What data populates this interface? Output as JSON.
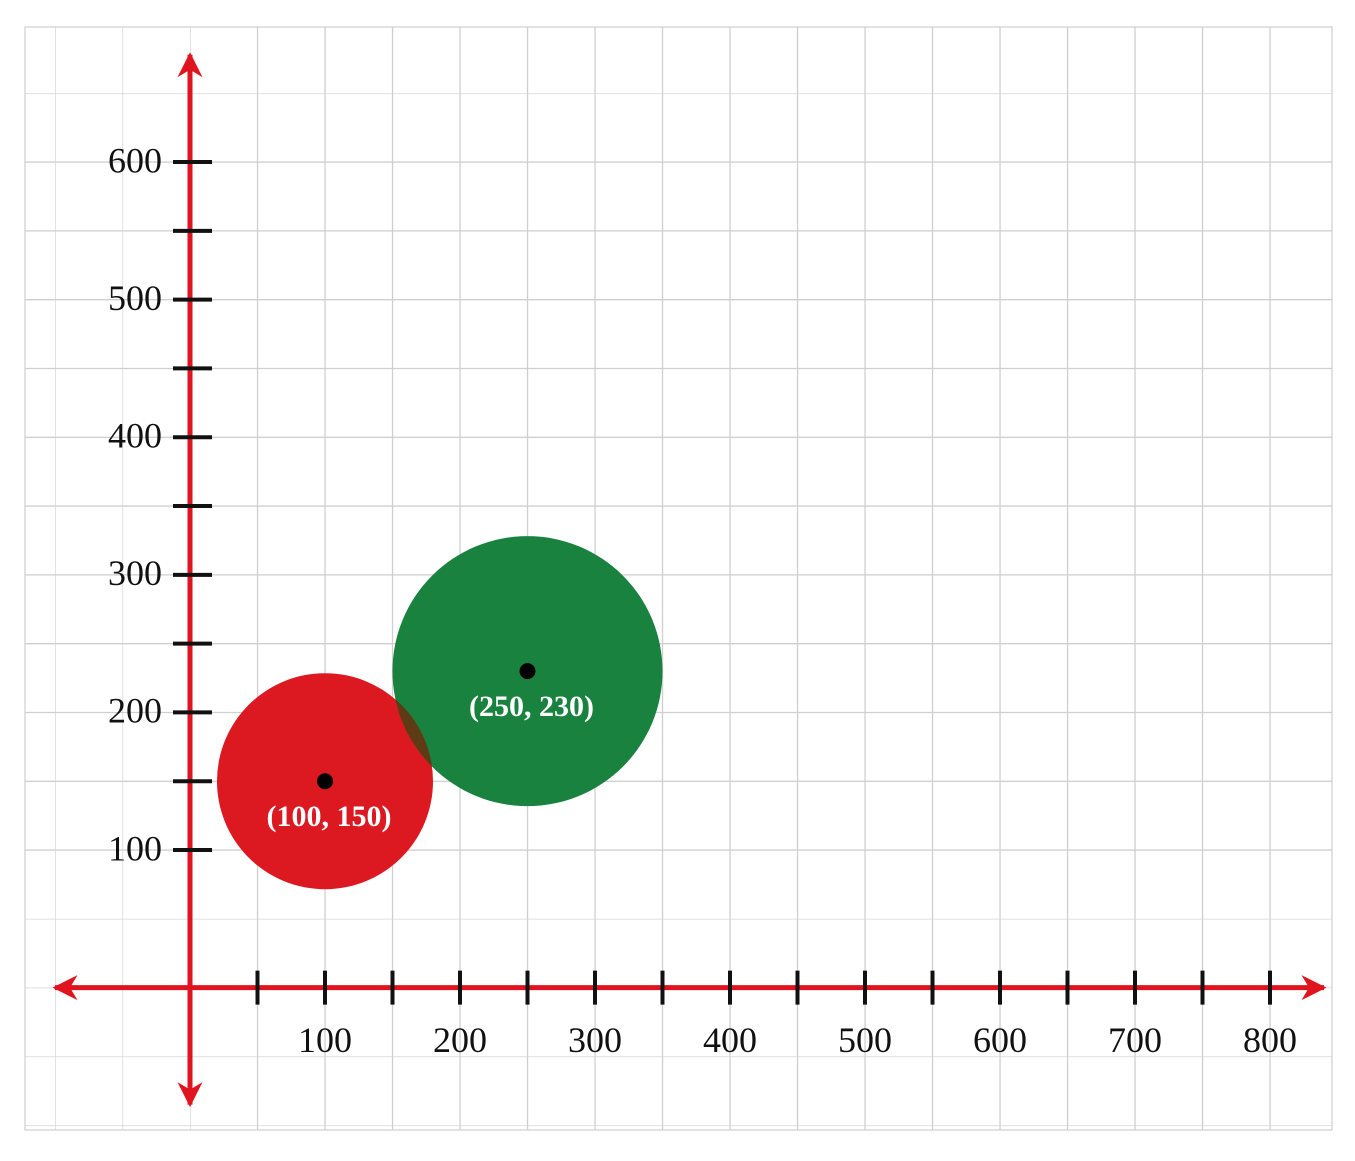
{
  "chart_data": {
    "type": "scatter",
    "xlim": [
      -100,
      840
    ],
    "ylim": [
      -85,
      678
    ],
    "xticks": [
      100,
      200,
      300,
      400,
      500,
      600,
      700,
      800
    ],
    "x_minor_ticks": [
      50,
      150,
      250,
      350,
      450,
      550,
      650,
      750
    ],
    "yticks": [
      100,
      200,
      300,
      400,
      500,
      600
    ],
    "y_minor_ticks": [
      150,
      250,
      350,
      450,
      550
    ],
    "grid": true,
    "axis_color": "#e0141e",
    "series": [
      {
        "color": "#dc1820",
        "x": [
          100
        ],
        "values": [
          150
        ],
        "radius": [
          80
        ],
        "value_labels": [
          "(100, 150)"
        ]
      },
      {
        "color": "#19823f",
        "x": [
          250
        ],
        "values": [
          230
        ],
        "radius": [
          100
        ],
        "value_labels": [
          "(250, 230)"
        ]
      }
    ],
    "overlap_color": "#5e3b14"
  }
}
